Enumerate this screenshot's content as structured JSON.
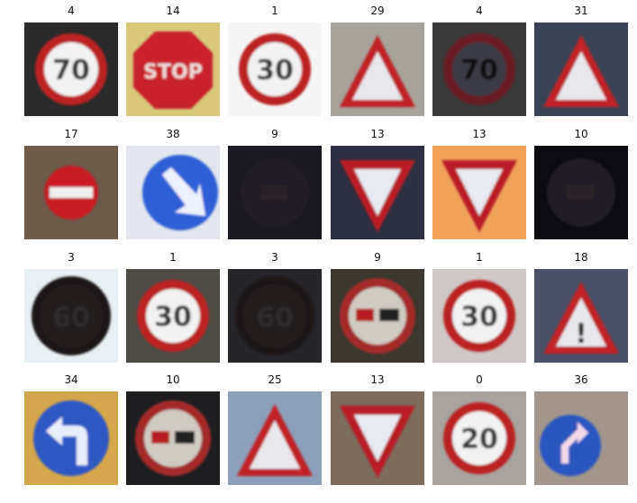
{
  "grid": [
    {
      "label": "4",
      "sign": "speed",
      "text": "70",
      "bg": "#2a2a2a"
    },
    {
      "label": "14",
      "sign": "stop",
      "text": "STOP",
      "bg": "#d9c77a"
    },
    {
      "label": "1",
      "sign": "speed",
      "text": "30",
      "bg": "#f5f5f5"
    },
    {
      "label": "29",
      "sign": "warn",
      "text": "",
      "bg": "#a8a39a"
    },
    {
      "label": "4",
      "sign": "speed",
      "text": "70",
      "bg": "#3a3a3a",
      "dark": true
    },
    {
      "label": "31",
      "sign": "warn",
      "text": "",
      "bg": "#3b4454"
    },
    {
      "label": "17",
      "sign": "noentry",
      "text": "",
      "bg": "#6d5c4c"
    },
    {
      "label": "38",
      "sign": "keepright",
      "text": "",
      "bg": "#e3e6ee"
    },
    {
      "label": "9",
      "sign": "dark",
      "text": "",
      "bg": "#1b1a22"
    },
    {
      "label": "13",
      "sign": "yield",
      "text": "",
      "bg": "#2d3040"
    },
    {
      "label": "13",
      "sign": "yield",
      "text": "",
      "bg": "#f0a15a"
    },
    {
      "label": "10",
      "sign": "dark",
      "text": "",
      "bg": "#0c0b12"
    },
    {
      "label": "3",
      "sign": "speeddark",
      "text": "60",
      "bg": "#e8f0f4"
    },
    {
      "label": "1",
      "sign": "speed",
      "text": "30",
      "bg": "#4d4b44"
    },
    {
      "label": "3",
      "sign": "speeddark",
      "text": "60",
      "bg": "#26262a"
    },
    {
      "label": "9",
      "sign": "nopass",
      "text": "",
      "bg": "#3c3830"
    },
    {
      "label": "1",
      "sign": "speed",
      "text": "30",
      "bg": "#d0c7c7"
    },
    {
      "label": "18",
      "sign": "warn",
      "text": "!",
      "bg": "#4a5167"
    },
    {
      "label": "34",
      "sign": "turnleft",
      "text": "",
      "bg": "#d6a64d"
    },
    {
      "label": "10",
      "sign": "nopass",
      "text": "",
      "bg": "#1e1e21"
    },
    {
      "label": "25",
      "sign": "warn",
      "text": "",
      "bg": "#8ea0b8"
    },
    {
      "label": "13",
      "sign": "yield",
      "text": "",
      "bg": "#7b6c5e"
    },
    {
      "label": "0",
      "sign": "speed",
      "text": "20",
      "bg": "#a8a39f"
    },
    {
      "label": "36",
      "sign": "blue",
      "text": "",
      "bg": "#a2968d"
    }
  ]
}
